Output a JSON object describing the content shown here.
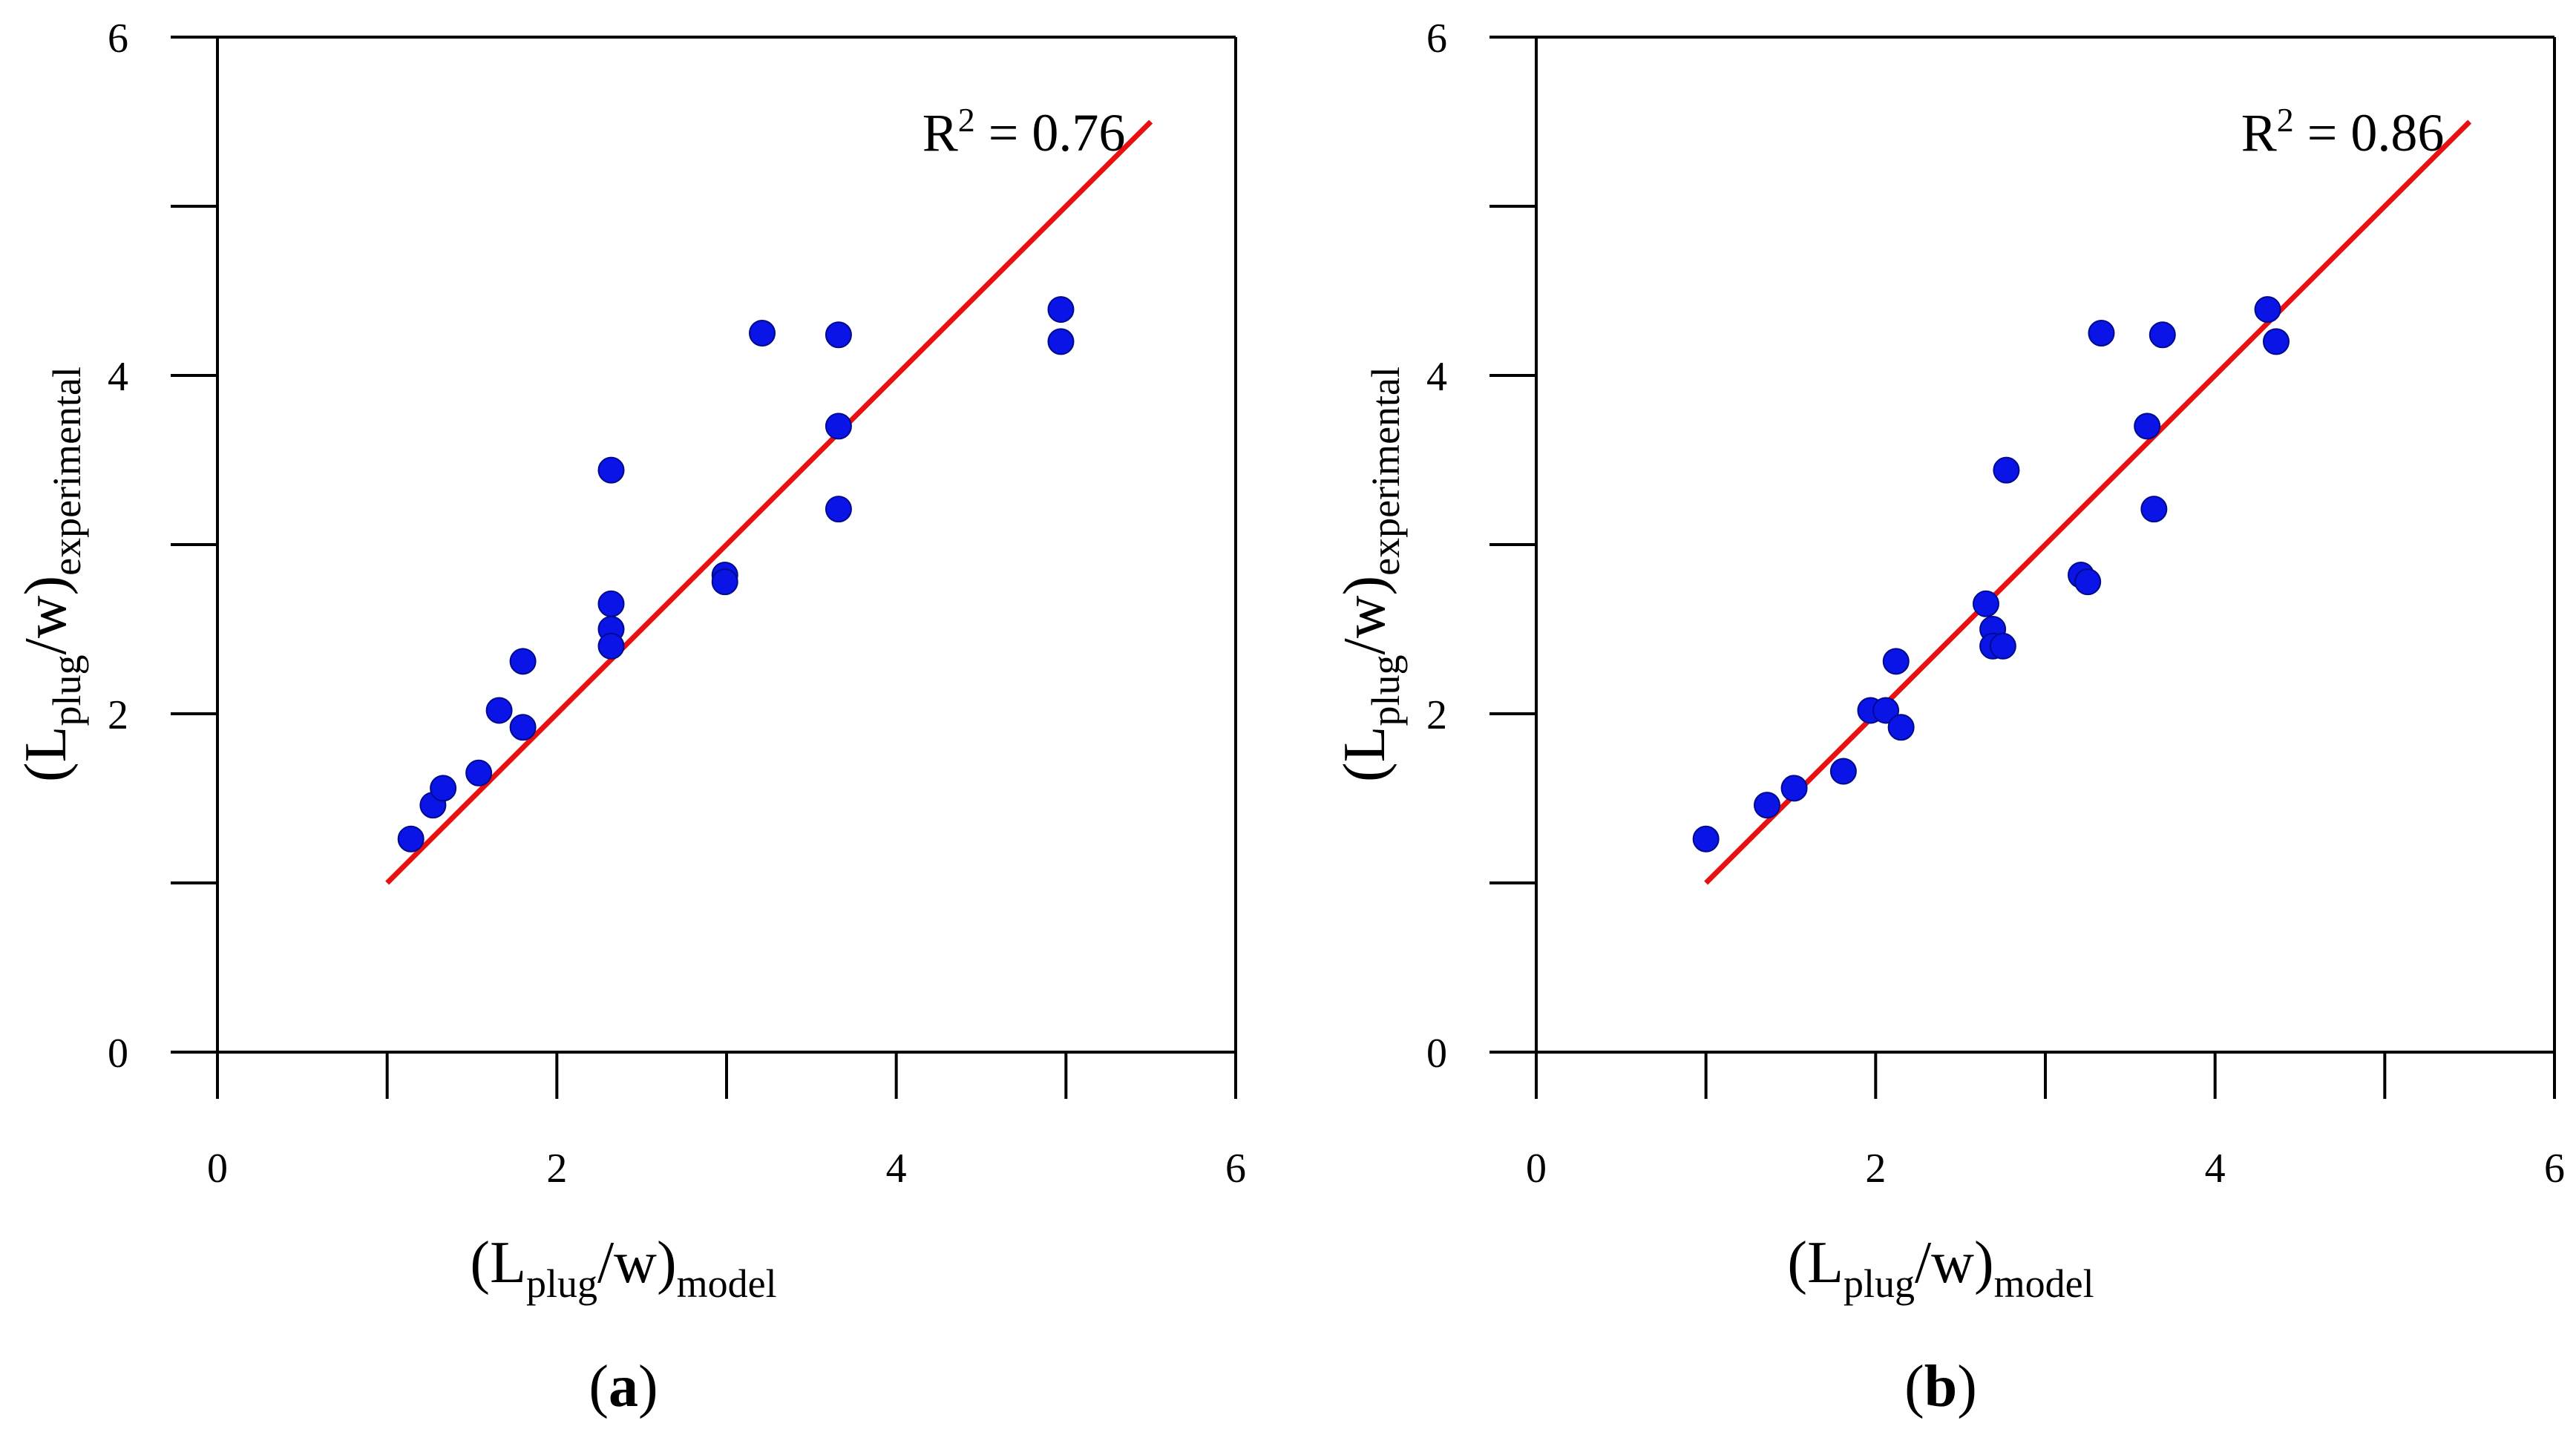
{
  "chart_data": [
    {
      "type": "scatter",
      "panel_label": "a",
      "xlabel": {
        "main": "(L",
        "sub1": "plug",
        "mid": "/w)",
        "sub2": "model"
      },
      "ylabel": {
        "main": "(L",
        "sub1": "plug",
        "mid": "/w)",
        "sub2": "experimental"
      },
      "xlim": [
        0,
        6
      ],
      "ylim": [
        0,
        6
      ],
      "xticks": [
        0,
        2,
        4,
        6
      ],
      "yticks": [
        0,
        2,
        4,
        6
      ],
      "annotation": {
        "base": "R",
        "sup": "2",
        "rest": " = 0.76"
      },
      "point_color": "#0a14e6",
      "line_color": "#e81010",
      "line": {
        "x": [
          1,
          5.5
        ],
        "y": [
          1,
          5.5
        ]
      },
      "points": [
        [
          1.14,
          1.26
        ],
        [
          1.27,
          1.46
        ],
        [
          1.33,
          1.56
        ],
        [
          1.54,
          1.65
        ],
        [
          1.66,
          2.02
        ],
        [
          1.8,
          2.31
        ],
        [
          1.8,
          1.92
        ],
        [
          2.32,
          3.44
        ],
        [
          2.32,
          2.65
        ],
        [
          2.32,
          2.5
        ],
        [
          2.32,
          2.4
        ],
        [
          2.99,
          2.82
        ],
        [
          2.99,
          2.78
        ],
        [
          3.21,
          4.25
        ],
        [
          3.66,
          4.24
        ],
        [
          3.66,
          3.7
        ],
        [
          3.66,
          3.21
        ],
        [
          4.97,
          4.39
        ],
        [
          4.97,
          4.2
        ]
      ]
    },
    {
      "type": "scatter",
      "panel_label": "b",
      "xlabel": {
        "main": "(L",
        "sub1": "plug",
        "mid": "/w)",
        "sub2": "model"
      },
      "ylabel": {
        "main": "(L",
        "sub1": "plug",
        "mid": "/w)",
        "sub2": "experimental"
      },
      "xlim": [
        0,
        6
      ],
      "ylim": [
        0,
        6
      ],
      "xticks": [
        0,
        2,
        4,
        6
      ],
      "yticks": [
        0,
        2,
        4,
        6
      ],
      "annotation": {
        "base": "R",
        "sup": "2",
        "rest": " = 0.86"
      },
      "point_color": "#0a14e6",
      "line_color": "#e81010",
      "line": {
        "x": [
          1,
          5.5
        ],
        "y": [
          1,
          5.5
        ]
      },
      "points": [
        [
          1.0,
          1.26
        ],
        [
          1.36,
          1.46
        ],
        [
          1.52,
          1.56
        ],
        [
          1.81,
          1.66
        ],
        [
          1.97,
          2.02
        ],
        [
          2.06,
          2.02
        ],
        [
          2.12,
          2.31
        ],
        [
          2.15,
          1.92
        ],
        [
          2.65,
          2.65
        ],
        [
          2.69,
          2.5
        ],
        [
          2.69,
          2.4
        ],
        [
          2.75,
          2.4
        ],
        [
          2.77,
          3.44
        ],
        [
          3.21,
          2.82
        ],
        [
          3.25,
          2.78
        ],
        [
          3.33,
          4.25
        ],
        [
          3.6,
          3.7
        ],
        [
          3.64,
          3.21
        ],
        [
          3.69,
          4.24
        ],
        [
          4.31,
          4.39
        ],
        [
          4.36,
          4.2
        ]
      ]
    }
  ]
}
